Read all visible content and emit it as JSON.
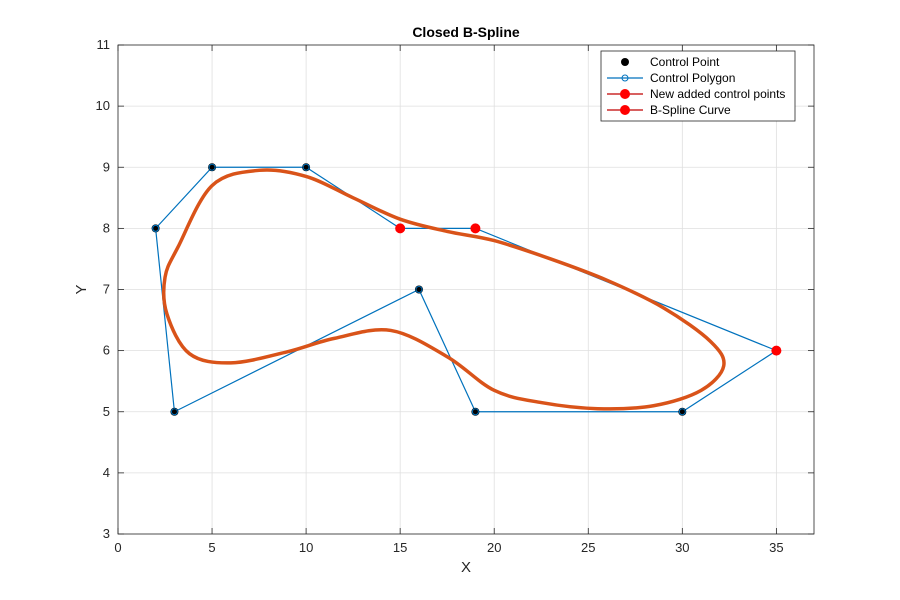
{
  "chart_data": {
    "type": "line",
    "title": "Closed B-Spline",
    "xlabel": "X",
    "ylabel": "Y",
    "xlim": [
      0,
      37
    ],
    "ylim": [
      3,
      11
    ],
    "xticks": [
      0,
      5,
      10,
      15,
      20,
      25,
      30,
      35
    ],
    "yticks": [
      3,
      4,
      5,
      6,
      7,
      8,
      9,
      10,
      11
    ],
    "grid": true,
    "legend_position": "top-right",
    "series": [
      {
        "name": "Control Point",
        "kind": "markers",
        "color": "#000000",
        "points": [
          [
            2,
            8
          ],
          [
            5,
            9
          ],
          [
            10,
            9
          ],
          [
            16,
            7
          ],
          [
            19,
            5
          ],
          [
            30,
            5
          ],
          [
            3,
            5
          ]
        ]
      },
      {
        "name": "Control Polygon",
        "kind": "line-markers",
        "color": "#0072BD",
        "points": [
          [
            2,
            8
          ],
          [
            5,
            9
          ],
          [
            10,
            9
          ],
          [
            15,
            8
          ],
          [
            19,
            8
          ],
          [
            35,
            6
          ],
          [
            30,
            5
          ],
          [
            19,
            5
          ],
          [
            16,
            7
          ],
          [
            3,
            5
          ],
          [
            2,
            8
          ]
        ]
      },
      {
        "name": "New added control points",
        "kind": "markers",
        "color": "#FF0000",
        "points": [
          [
            15,
            8
          ],
          [
            19,
            8
          ],
          [
            35,
            6
          ]
        ]
      },
      {
        "name": "B-Spline Curve",
        "kind": "curve",
        "color": "#D95319",
        "points": [
          [
            3.2,
            7.7
          ],
          [
            5.0,
            8.7
          ],
          [
            7.5,
            8.95
          ],
          [
            10.0,
            8.85
          ],
          [
            12.5,
            8.5
          ],
          [
            15.0,
            8.15
          ],
          [
            17.5,
            7.95
          ],
          [
            20.0,
            7.8
          ],
          [
            23.0,
            7.5
          ],
          [
            26.0,
            7.15
          ],
          [
            29.0,
            6.7
          ],
          [
            31.5,
            6.15
          ],
          [
            32.2,
            5.75
          ],
          [
            31.0,
            5.35
          ],
          [
            28.5,
            5.1
          ],
          [
            25.5,
            5.05
          ],
          [
            22.5,
            5.15
          ],
          [
            20.0,
            5.35
          ],
          [
            17.5,
            5.9
          ],
          [
            14.5,
            6.33
          ],
          [
            11.5,
            6.2
          ],
          [
            9.0,
            5.98
          ],
          [
            6.0,
            5.8
          ],
          [
            3.8,
            5.95
          ],
          [
            2.6,
            6.6
          ],
          [
            2.5,
            7.2
          ]
        ]
      }
    ]
  }
}
